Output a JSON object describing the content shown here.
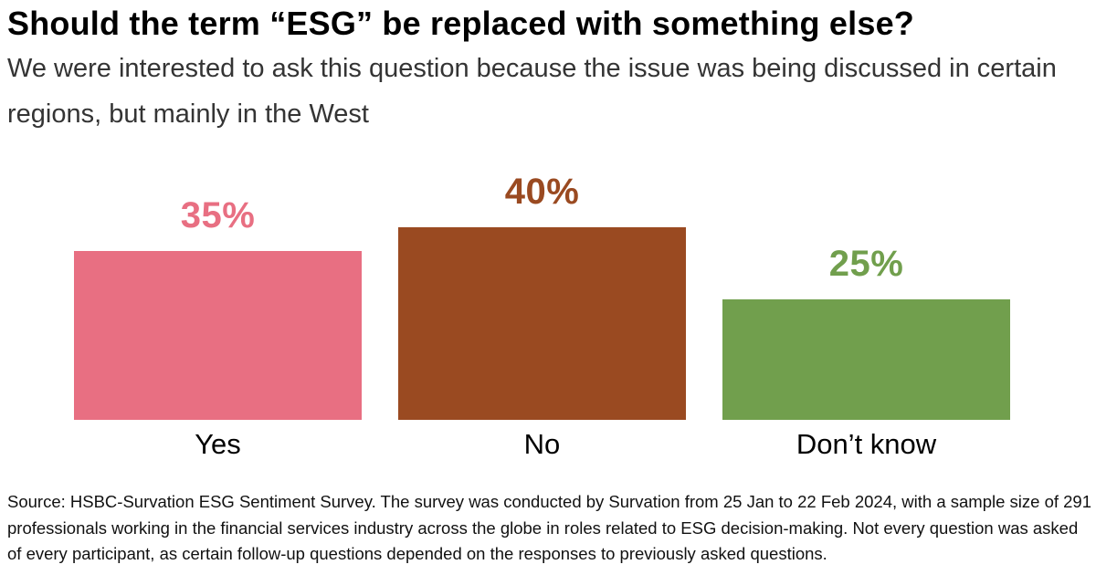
{
  "header": {
    "title": "Should the term “ESG” be replaced with something else?",
    "subtitle": "We were interested to ask this question because the issue was being discussed in certain regions, but mainly in the West"
  },
  "chart_data": {
    "type": "bar",
    "categories": [
      "Yes",
      "No",
      "Don’t know"
    ],
    "values": [
      35,
      40,
      25
    ],
    "value_labels": [
      "35%",
      "40%",
      "25%"
    ],
    "colors": [
      "#E86F82",
      "#9A4A21",
      "#719F4D"
    ],
    "title": "Should the term “ESG” be replaced with something else?",
    "xlabel": "",
    "ylabel": "",
    "ylim": [
      0,
      45
    ],
    "grid": false,
    "legend": "none",
    "value_label_position": "above-bar",
    "unit": "percent"
  },
  "footer": {
    "source": "Source: HSBC-Survation ESG Sentiment Survey. The survey was conducted by Survation from 25 Jan to 22 Feb 2024, with a sample size of 291 professionals working in the financial services industry across the globe in roles related to ESG decision-making. Not every question was asked of every participant, as certain follow-up questions depended on the responses to previously asked questions."
  }
}
